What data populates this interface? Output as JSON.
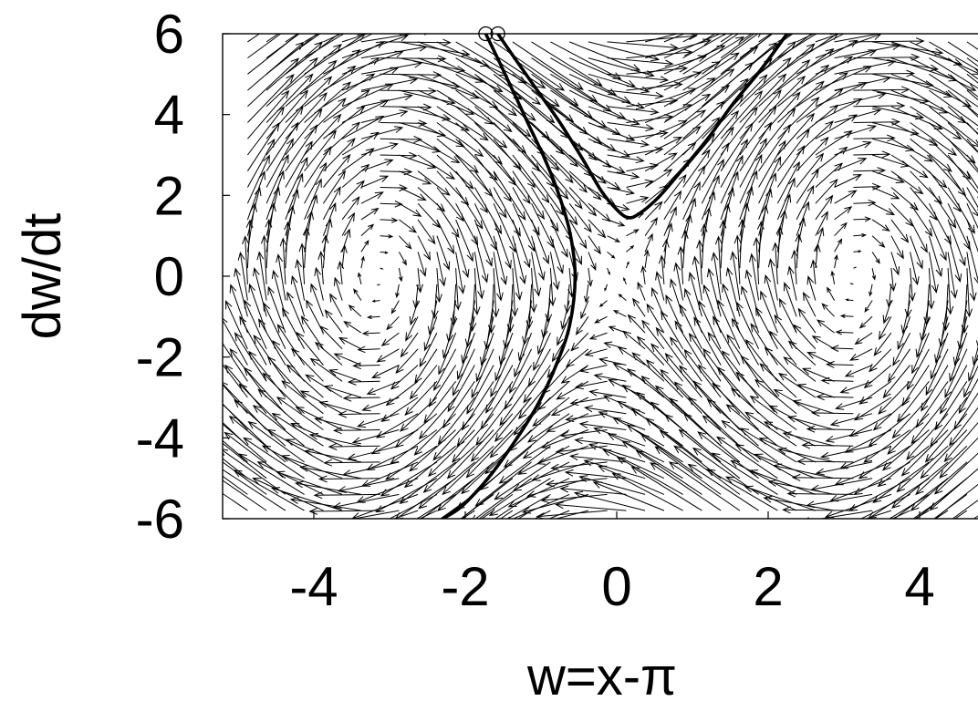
{
  "chart_data": {
    "type": "scatter",
    "subtype": "phase-portrait vector field with trajectories",
    "title": "",
    "xlabel": "w=x-π",
    "ylabel": "dw/dt",
    "xlim": [
      -5,
      5
    ],
    "ylim": [
      -6,
      6
    ],
    "x_ticks": [
      {
        "value": -4,
        "label": "-4"
      },
      {
        "value": -2,
        "label": "-2"
      },
      {
        "value": 0,
        "label": "0"
      },
      {
        "value": 2,
        "label": "2"
      },
      {
        "value": 4,
        "label": "4"
      }
    ],
    "y_ticks": [
      {
        "value": 6,
        "label": "6"
      },
      {
        "value": 4,
        "label": "4"
      },
      {
        "value": 2,
        "label": "2"
      },
      {
        "value": 0,
        "label": "0"
      },
      {
        "value": -2,
        "label": "-2"
      },
      {
        "value": -4,
        "label": "-4"
      },
      {
        "value": -6,
        "label": "-6"
      }
    ],
    "grid": false,
    "legend": "none",
    "vector_field": {
      "equation": "dw/dt = v, dv/dt = sin(w)",
      "x_samples": 40,
      "y_samples": 30,
      "arrow_scale": 0.16
    },
    "series": [
      {
        "points": [
          [
            -1.73,
            6.0
          ],
          [
            -1.55,
            5.3
          ],
          [
            -1.35,
            4.5
          ],
          [
            -1.15,
            3.7
          ],
          [
            -0.95,
            2.9
          ],
          [
            -0.78,
            2.1
          ],
          [
            -0.62,
            1.1
          ],
          [
            -0.55,
            0.0
          ],
          [
            -0.62,
            -1.2
          ],
          [
            -0.8,
            -2.2
          ],
          [
            -1.05,
            -3.2
          ],
          [
            -1.35,
            -4.1
          ],
          [
            -1.7,
            -5.0
          ],
          [
            -2.05,
            -5.7
          ],
          [
            -2.3,
            -6.0
          ]
        ]
      },
      {
        "points": [
          [
            -1.57,
            6.0
          ],
          [
            -1.35,
            5.4
          ],
          [
            -1.05,
            4.6
          ],
          [
            -0.75,
            3.8
          ],
          [
            -0.45,
            2.9
          ],
          [
            -0.2,
            2.1
          ],
          [
            0.0,
            1.65
          ],
          [
            0.15,
            1.45
          ],
          [
            0.3,
            1.55
          ],
          [
            0.55,
            1.95
          ],
          [
            0.85,
            2.6
          ],
          [
            1.2,
            3.4
          ],
          [
            1.55,
            4.3
          ],
          [
            1.9,
            5.1
          ],
          [
            2.25,
            6.0
          ]
        ]
      }
    ],
    "start_markers": [
      {
        "x": -1.73,
        "y": 6.0
      },
      {
        "x": -1.57,
        "y": 6.0
      }
    ]
  }
}
